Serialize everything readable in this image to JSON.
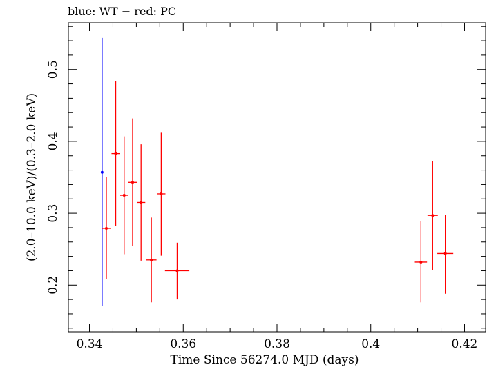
{
  "chart_data": {
    "type": "scatter",
    "title": "blue: WT − red: PC",
    "xlabel": "Time Since 56274.0 MJD (days)",
    "ylabel": "(2.0–10.0 keV)/(0.3–2.0 keV)",
    "xlim": [
      0.3355,
      0.4245
    ],
    "ylim": [
      0.135,
      0.565
    ],
    "xticks": [
      {
        "value": 0.34,
        "label": "0.34"
      },
      {
        "value": 0.36,
        "label": "0.36"
      },
      {
        "value": 0.38,
        "label": "0.38"
      },
      {
        "value": 0.4,
        "label": "0.4"
      },
      {
        "value": 0.42,
        "label": "0.42"
      }
    ],
    "yticks": [
      {
        "value": 0.2,
        "label": "0.2"
      },
      {
        "value": 0.3,
        "label": "0.3"
      },
      {
        "value": 0.4,
        "label": "0.4"
      },
      {
        "value": 0.5,
        "label": "0.5"
      }
    ],
    "grid": false,
    "series": [
      {
        "color": "#0000ff",
        "points": [
          {
            "x": 0.3427,
            "xerr": 0.0,
            "y": 0.357,
            "ylo": 0.171,
            "yhi": 0.544
          }
        ]
      },
      {
        "color": "#ff0000",
        "points": [
          {
            "x": 0.3436,
            "xerr": 0.0009,
            "y": 0.279,
            "ylo": 0.208,
            "yhi": 0.35
          },
          {
            "x": 0.3456,
            "xerr": 0.0009,
            "y": 0.383,
            "ylo": 0.282,
            "yhi": 0.484
          },
          {
            "x": 0.3474,
            "xerr": 0.0009,
            "y": 0.325,
            "ylo": 0.243,
            "yhi": 0.407
          },
          {
            "x": 0.3492,
            "xerr": 0.0009,
            "y": 0.343,
            "ylo": 0.254,
            "yhi": 0.432
          },
          {
            "x": 0.351,
            "xerr": 0.0009,
            "y": 0.315,
            "ylo": 0.234,
            "yhi": 0.396
          },
          {
            "x": 0.3532,
            "xerr": 0.0011,
            "y": 0.235,
            "ylo": 0.176,
            "yhi": 0.294
          },
          {
            "x": 0.3553,
            "xerr": 0.0009,
            "y": 0.327,
            "ylo": 0.241,
            "yhi": 0.412
          },
          {
            "x": 0.3587,
            "xerr": 0.0026,
            "y": 0.22,
            "ylo": 0.18,
            "yhi": 0.259
          },
          {
            "x": 0.4107,
            "xerr": 0.0013,
            "y": 0.232,
            "ylo": 0.176,
            "yhi": 0.289
          },
          {
            "x": 0.4132,
            "xerr": 0.0011,
            "y": 0.297,
            "ylo": 0.221,
            "yhi": 0.373
          },
          {
            "x": 0.4159,
            "xerr": 0.0017,
            "y": 0.244,
            "ylo": 0.188,
            "yhi": 0.298
          }
        ]
      }
    ]
  }
}
